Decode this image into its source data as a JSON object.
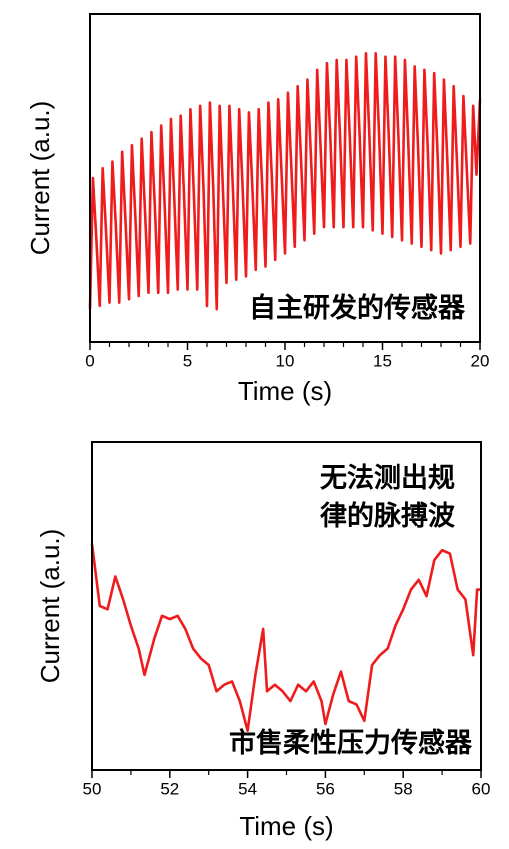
{
  "chart_data": [
    {
      "type": "line",
      "xlabel": "Time (s)",
      "ylabel": "Current (a.u.)",
      "annotations": [
        "自主研发的传感器"
      ],
      "color": "#ee1c1c",
      "xlim": [
        0,
        20
      ],
      "ylim": [
        0,
        10
      ],
      "xticks": [
        0,
        5,
        10,
        15,
        20
      ],
      "xminorticks": [
        1,
        2,
        3,
        4,
        6,
        7,
        8,
        9,
        11,
        12,
        13,
        14,
        16,
        17,
        18,
        19
      ],
      "x": [
        0.0,
        0.15,
        0.32,
        0.5,
        0.65,
        0.82,
        1.0,
        1.15,
        1.32,
        1.5,
        1.65,
        1.82,
        2.0,
        2.15,
        2.32,
        2.5,
        2.65,
        2.82,
        3.0,
        3.15,
        3.32,
        3.5,
        3.65,
        3.82,
        4.0,
        4.15,
        4.32,
        4.5,
        4.65,
        4.82,
        5.0,
        5.15,
        5.32,
        5.5,
        5.65,
        5.82,
        6.0,
        6.15,
        6.32,
        6.5,
        6.65,
        6.82,
        7.0,
        7.15,
        7.32,
        7.5,
        7.65,
        7.82,
        8.0,
        8.15,
        8.32,
        8.5,
        8.65,
        8.82,
        9.0,
        9.15,
        9.32,
        9.5,
        9.65,
        9.82,
        10.0,
        10.15,
        10.32,
        10.5,
        10.65,
        10.82,
        11.0,
        11.15,
        11.32,
        11.5,
        11.65,
        11.82,
        12.0,
        12.15,
        12.32,
        12.5,
        12.65,
        12.82,
        13.0,
        13.15,
        13.32,
        13.5,
        13.65,
        13.82,
        14.0,
        14.15,
        14.32,
        14.5,
        14.65,
        14.82,
        15.0,
        15.15,
        15.32,
        15.5,
        15.65,
        15.82,
        16.0,
        16.15,
        16.32,
        16.5,
        16.65,
        16.82,
        17.0,
        17.15,
        17.32,
        17.5,
        17.65,
        17.82,
        18.0,
        18.15,
        18.32,
        18.5,
        18.65,
        18.82,
        19.0,
        19.15,
        19.32,
        19.5,
        19.65,
        19.82,
        20.0
      ],
      "values": [
        1.0,
        5.0,
        3.2,
        1.1,
        5.3,
        3.4,
        1.2,
        5.5,
        3.6,
        1.2,
        5.8,
        3.7,
        1.3,
        6.0,
        3.9,
        1.4,
        6.2,
        4.0,
        1.5,
        6.4,
        4.2,
        1.5,
        6.6,
        4.3,
        1.5,
        6.8,
        4.4,
        1.6,
        6.9,
        4.5,
        1.6,
        7.1,
        4.6,
        1.6,
        7.2,
        4.7,
        1.1,
        7.3,
        4.7,
        1.0,
        7.2,
        4.6,
        1.8,
        7.2,
        4.8,
        1.9,
        7.1,
        4.8,
        2.0,
        7.0,
        4.8,
        2.2,
        7.1,
        4.9,
        2.3,
        7.3,
        5.1,
        2.5,
        7.4,
        5.2,
        2.7,
        7.6,
        5.4,
        2.9,
        7.8,
        5.6,
        3.1,
        8.0,
        5.8,
        3.3,
        8.3,
        6.0,
        3.5,
        8.5,
        6.3,
        3.5,
        8.6,
        6.3,
        3.5,
        8.6,
        6.3,
        3.5,
        8.7,
        6.4,
        3.5,
        8.8,
        6.4,
        3.4,
        8.8,
        6.4,
        3.3,
        8.7,
        6.3,
        3.2,
        8.7,
        6.2,
        3.1,
        8.6,
        6.1,
        3.0,
        8.4,
        6.0,
        2.9,
        8.3,
        5.9,
        2.8,
        8.2,
        5.8,
        2.7,
        8.0,
        5.6,
        2.8,
        7.8,
        5.5,
        2.9,
        7.5,
        5.3,
        3.0,
        7.2,
        5.1,
        7.4
      ]
    },
    {
      "type": "line",
      "xlabel": "Time (s)",
      "ylabel": "Current (a.u.)",
      "annotations": [
        "无法测出规",
        "律的脉搏波",
        "市售柔性压力传感器"
      ],
      "color": "#ee1c1c",
      "xlim": [
        50,
        60
      ],
      "ylim": [
        0,
        10
      ],
      "xticks": [
        50,
        52,
        54,
        56,
        58,
        60
      ],
      "xminorticks": [
        51,
        53,
        55,
        57,
        59
      ],
      "x": [
        50.0,
        50.2,
        50.4,
        50.6,
        50.8,
        51.0,
        51.2,
        51.35,
        51.6,
        51.8,
        52.0,
        52.2,
        52.4,
        52.6,
        52.8,
        53.0,
        53.2,
        53.4,
        53.6,
        53.8,
        54.0,
        54.2,
        54.4,
        54.5,
        54.7,
        54.9,
        55.1,
        55.3,
        55.5,
        55.7,
        55.9,
        56.0,
        56.2,
        56.4,
        56.6,
        56.8,
        57.0,
        57.2,
        57.4,
        57.6,
        57.8,
        58.0,
        58.2,
        58.4,
        58.6,
        58.8,
        59.0,
        59.2,
        59.4,
        59.6,
        59.8,
        59.9,
        60.0
      ],
      "values": [
        6.9,
        5.0,
        4.9,
        5.9,
        5.2,
        4.4,
        3.7,
        2.9,
        4.0,
        4.7,
        4.6,
        4.7,
        4.3,
        3.7,
        3.4,
        3.2,
        2.4,
        2.6,
        2.7,
        2.1,
        1.2,
        2.9,
        4.3,
        2.4,
        2.6,
        2.4,
        2.1,
        2.6,
        2.4,
        2.7,
        2.1,
        1.4,
        2.3,
        3.0,
        2.1,
        2.0,
        1.5,
        3.2,
        3.5,
        3.7,
        4.4,
        4.9,
        5.5,
        5.8,
        5.3,
        6.4,
        6.7,
        6.6,
        5.5,
        5.2,
        3.5,
        5.5,
        5.5
      ]
    }
  ]
}
